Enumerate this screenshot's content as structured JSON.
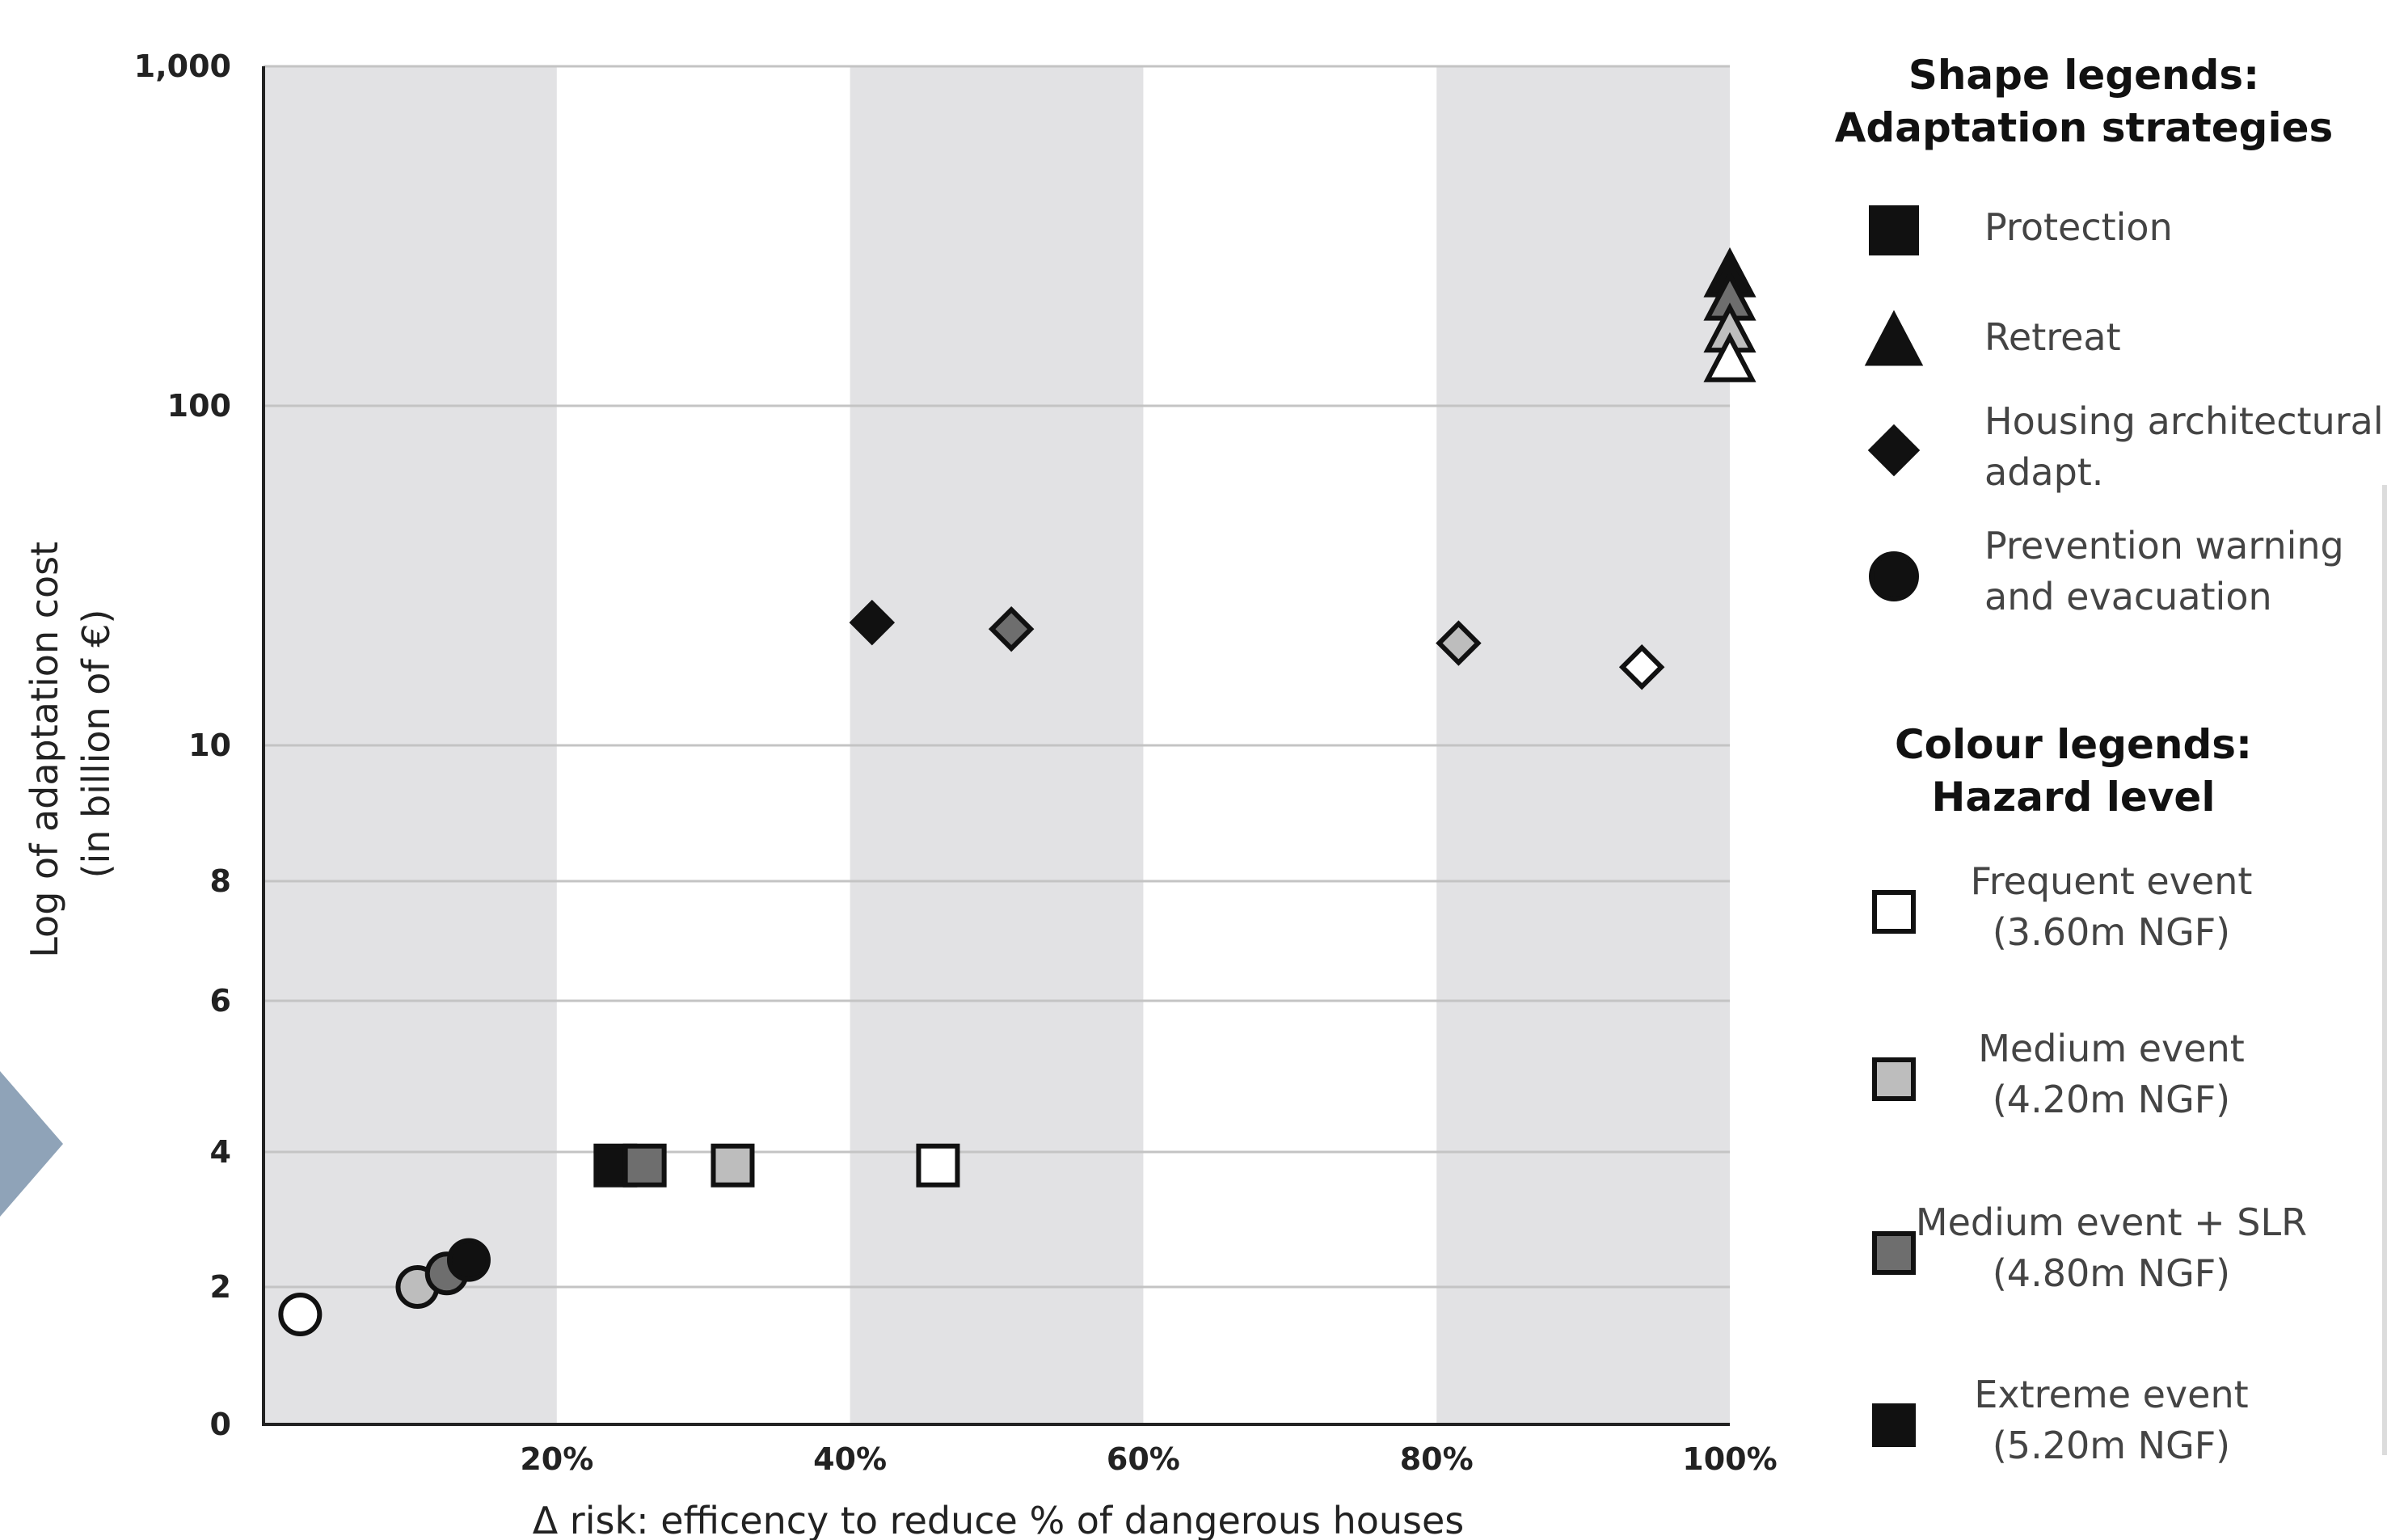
{
  "colors": {
    "band": "#e2e2e4",
    "grid": "#c4c4c4",
    "axis": "#222222",
    "hazard_frequent": "#ffffff",
    "hazard_medium": "#bdbdbd",
    "hazard_medium_slr": "#6e6e6e",
    "hazard_extreme": "#111111",
    "side_arrow": "#8fa3b8"
  },
  "chart_data": {
    "type": "scatter",
    "xlabel": "Δ risk: efficency to reduce % of dangerous houses",
    "ylabel_lines": [
      "Log of adaptation cost",
      "(in billion of €)"
    ],
    "x_ticks": [
      {
        "value": 20,
        "label": "20%"
      },
      {
        "value": 40,
        "label": "40%"
      },
      {
        "value": 60,
        "label": "60%"
      },
      {
        "value": 80,
        "label": "80%"
      },
      {
        "value": 100,
        "label": "100%"
      }
    ],
    "y_ticks": [
      {
        "value": 0,
        "label": "0"
      },
      {
        "value": 2,
        "label": "2"
      },
      {
        "value": 4,
        "label": "4"
      },
      {
        "value": 6,
        "label": "6"
      },
      {
        "value": 8,
        "label": "8"
      },
      {
        "value": 10,
        "label": "10"
      },
      {
        "value": 100,
        "label": "100"
      },
      {
        "value": 1000,
        "label": "1,000"
      }
    ],
    "xlim": [
      0,
      100
    ],
    "shaded_bands": [
      [
        0,
        20
      ],
      [
        40,
        60
      ],
      [
        80,
        100
      ]
    ],
    "grid": true,
    "legend_position": "right",
    "points": [
      {
        "strategy": "prevention",
        "hazard": "frequent",
        "x": 2.5,
        "y": 1.6
      },
      {
        "strategy": "prevention",
        "hazard": "medium",
        "x": 10.5,
        "y": 2.0
      },
      {
        "strategy": "prevention",
        "hazard": "medium_slr",
        "x": 12.5,
        "y": 2.2
      },
      {
        "strategy": "prevention",
        "hazard": "extreme",
        "x": 14,
        "y": 2.4
      },
      {
        "strategy": "protection",
        "hazard": "extreme",
        "x": 24,
        "y": 3.8
      },
      {
        "strategy": "protection",
        "hazard": "medium_slr",
        "x": 26,
        "y": 3.8
      },
      {
        "strategy": "protection",
        "hazard": "medium",
        "x": 32,
        "y": 3.8
      },
      {
        "strategy": "protection",
        "hazard": "frequent",
        "x": 46,
        "y": 3.8
      },
      {
        "strategy": "housing",
        "hazard": "extreme",
        "x": 41.5,
        "y": 23
      },
      {
        "strategy": "housing",
        "hazard": "medium_slr",
        "x": 51,
        "y": 22
      },
      {
        "strategy": "housing",
        "hazard": "medium",
        "x": 81.5,
        "y": 20
      },
      {
        "strategy": "housing",
        "hazard": "frequent",
        "x": 94,
        "y": 17
      },
      {
        "strategy": "retreat",
        "hazard": "extreme",
        "x": 100,
        "y": 240
      },
      {
        "strategy": "retreat",
        "hazard": "medium_slr",
        "x": 100,
        "y": 205
      },
      {
        "strategy": "retreat",
        "hazard": "medium",
        "x": 100,
        "y": 165
      },
      {
        "strategy": "retreat",
        "hazard": "frequent",
        "x": 100,
        "y": 135
      }
    ]
  },
  "legend": {
    "shape_title_lines": [
      "Shape legends:",
      "Adaptation strategies"
    ],
    "shapes": [
      {
        "shape": "square",
        "lines": [
          "Protection"
        ]
      },
      {
        "shape": "triangle",
        "lines": [
          "Retreat"
        ]
      },
      {
        "shape": "diamond",
        "lines": [
          "Housing architectural",
          "adapt."
        ]
      },
      {
        "shape": "circle",
        "lines": [
          "Prevention warning",
          "and evacuation"
        ]
      }
    ],
    "colour_title_lines": [
      "Colour legends:",
      "Hazard level"
    ],
    "colours": [
      {
        "hazard": "frequent",
        "lines": [
          "Frequent event",
          "(3.60m NGF)"
        ]
      },
      {
        "hazard": "medium",
        "lines": [
          "Medium event",
          "(4.20m NGF)"
        ]
      },
      {
        "hazard": "medium_slr",
        "lines": [
          "Medium event + SLR",
          "(4.80m NGF)"
        ]
      },
      {
        "hazard": "extreme",
        "lines": [
          "Extreme event",
          "(5.20m NGF)"
        ]
      }
    ]
  }
}
